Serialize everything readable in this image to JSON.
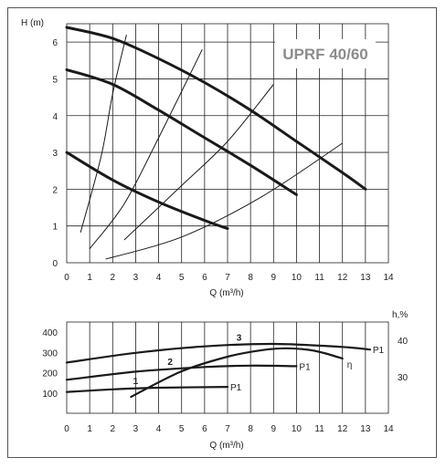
{
  "chart_data": [
    {
      "type": "line",
      "title": "UPRF 40/60",
      "xlabel": "Q (m³/h)",
      "ylabel": "H (m)",
      "xlim": [
        0,
        14
      ],
      "ylim": [
        0,
        6.5
      ],
      "x_ticks": [
        "0",
        "1",
        "2",
        "3",
        "4",
        "5",
        "6",
        "7",
        "8",
        "9",
        "10",
        "11",
        "12",
        "13",
        "14"
      ],
      "y_ticks": [
        "0",
        "1",
        "2",
        "3",
        "4",
        "5",
        "6"
      ],
      "grid": true,
      "series": [
        {
          "x": [
            0,
            2,
            4,
            6,
            7
          ],
          "values": [
            3.0,
            2.25,
            1.65,
            1.15,
            0.93
          ]
        },
        {
          "x": [
            0,
            2,
            4,
            6,
            8,
            10
          ],
          "values": [
            5.25,
            4.85,
            4.15,
            3.4,
            2.65,
            1.85
          ]
        },
        {
          "x": [
            0,
            2,
            4,
            6,
            8,
            10,
            12,
            13
          ],
          "values": [
            6.4,
            6.1,
            5.55,
            4.9,
            4.15,
            3.3,
            2.45,
            2.0
          ]
        }
      ],
      "system_curves": [
        {
          "x": [
            0.6,
            1.5,
            2.0,
            2.6
          ],
          "values": [
            0.82,
            2.9,
            4.6,
            6.2
          ]
        },
        {
          "x": [
            1.0,
            2.5,
            4.0,
            5.9
          ],
          "values": [
            0.38,
            1.6,
            3.4,
            5.8
          ]
        },
        {
          "x": [
            2.5,
            5.0,
            7.0,
            9.0
          ],
          "values": [
            0.62,
            2.1,
            3.3,
            4.85
          ]
        },
        {
          "x": [
            1.7,
            5.0,
            8.5,
            12.0
          ],
          "values": [
            0.1,
            0.7,
            1.8,
            3.25
          ]
        }
      ]
    },
    {
      "type": "line",
      "title": "",
      "xlabel": "Q (m³/h)",
      "ylabel": "",
      "ylabel_right": "h,%",
      "xlim": [
        0,
        14
      ],
      "ylim": [
        0,
        450
      ],
      "ylim_right": [
        20,
        45
      ],
      "x_ticks": [
        "0",
        "1",
        "2",
        "3",
        "4",
        "5",
        "6",
        "7",
        "8",
        "9",
        "10",
        "11",
        "12",
        "13",
        "14"
      ],
      "y_ticks": [
        "100",
        "200",
        "300",
        "400"
      ],
      "y_ticks_right": [
        "30",
        "40"
      ],
      "grid": true,
      "series": [
        {
          "name": "1",
          "end_label": "P1",
          "x": [
            0,
            2,
            4,
            7
          ],
          "values": [
            105,
            118,
            126,
            130
          ]
        },
        {
          "name": "2",
          "end_label": "P1",
          "x": [
            0,
            3,
            6,
            8,
            10
          ],
          "values": [
            165,
            205,
            228,
            235,
            232
          ]
        },
        {
          "name": "3",
          "end_label": "P1",
          "x": [
            0,
            3,
            6,
            9,
            12,
            13.2
          ],
          "values": [
            250,
            298,
            330,
            342,
            327,
            314
          ]
        }
      ],
      "efficiency": {
        "name": "η",
        "x": [
          2.8,
          5,
          7,
          8.5,
          9.5,
          10.5,
          11.2,
          12
        ],
        "values": [
          24.5,
          31.5,
          35.5,
          37.3,
          37.8,
          37.4,
          36.5,
          35.0
        ]
      }
    }
  ]
}
